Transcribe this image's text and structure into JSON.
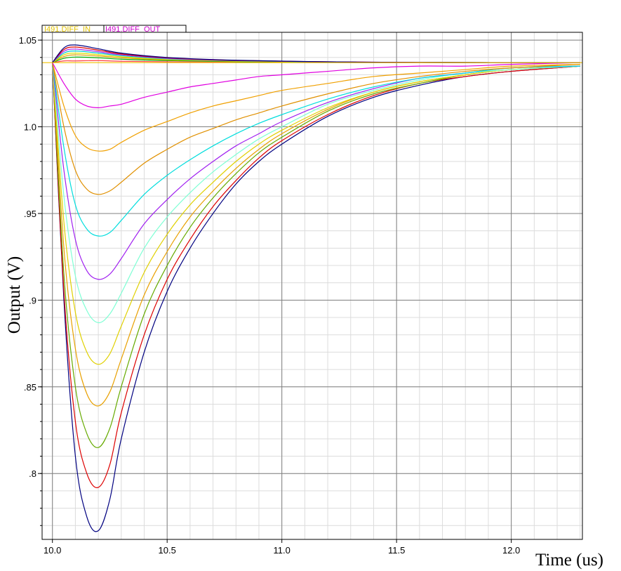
{
  "legend": [
    {
      "label": "I491.DIFF_IN",
      "color": "#e0c000"
    },
    {
      "label": "I491.DIFF_OUT",
      "color": "#cc00cc"
    }
  ],
  "chart_data": {
    "type": "line",
    "title": "",
    "xlabel": "Time (us)",
    "ylabel": "Output (V)",
    "xlim": [
      9.955,
      12.31
    ],
    "ylim": [
      0.762,
      1.0545
    ],
    "x_ticks": [
      10.0,
      10.5,
      11.0,
      11.5,
      12.0
    ],
    "x_tick_labels": [
      "10.0",
      "10.5",
      "11.0",
      "11.5",
      "12.0"
    ],
    "y_ticks": [
      1.05,
      1.0,
      0.95,
      0.9,
      0.85,
      0.8
    ],
    "y_tick_labels": [
      "1.05",
      "1.0",
      ".95",
      ".9",
      ".85",
      ".8"
    ],
    "grid": true,
    "baseline": 1.037,
    "series": [
      {
        "color": "#000080",
        "x": [
          10.0,
          10.05,
          10.1,
          10.15,
          10.2,
          10.25,
          10.3,
          10.4,
          10.5,
          10.6,
          10.7,
          10.8,
          10.9,
          11.0,
          11.2,
          11.4,
          11.6,
          11.8,
          12.0,
          12.3
        ],
        "values": [
          1.037,
          0.9,
          0.81,
          0.775,
          0.767,
          0.785,
          0.82,
          0.87,
          0.905,
          0.93,
          0.95,
          0.967,
          0.98,
          0.99,
          1.006,
          1.017,
          1.024,
          1.029,
          1.032,
          1.035
        ]
      },
      {
        "color": "#dd0000",
        "x": [
          10.0,
          10.05,
          10.1,
          10.15,
          10.2,
          10.25,
          10.3,
          10.4,
          10.5,
          10.6,
          10.7,
          10.8,
          10.9,
          11.0,
          11.2,
          11.4,
          11.6,
          11.8,
          12.0,
          12.3
        ],
        "values": [
          1.037,
          0.905,
          0.83,
          0.8,
          0.792,
          0.805,
          0.835,
          0.88,
          0.912,
          0.935,
          0.954,
          0.969,
          0.982,
          0.992,
          1.007,
          1.018,
          1.025,
          1.029,
          1.032,
          1.035
        ]
      },
      {
        "color": "#66aa00",
        "x": [
          10.0,
          10.05,
          10.1,
          10.15,
          10.2,
          10.25,
          10.3,
          10.4,
          10.5,
          10.6,
          10.7,
          10.8,
          10.9,
          11.0,
          11.2,
          11.4,
          11.6,
          11.8,
          12.0,
          12.3
        ],
        "values": [
          1.037,
          0.915,
          0.85,
          0.823,
          0.815,
          0.826,
          0.85,
          0.892,
          0.92,
          0.942,
          0.959,
          0.973,
          0.985,
          0.994,
          1.009,
          1.019,
          1.025,
          1.03,
          1.033,
          1.035
        ]
      },
      {
        "color": "#e8a000",
        "x": [
          10.0,
          10.05,
          10.1,
          10.15,
          10.2,
          10.25,
          10.3,
          10.4,
          10.5,
          10.6,
          10.7,
          10.8,
          10.9,
          11.0,
          11.2,
          11.4,
          11.6,
          11.8,
          12.0,
          12.3
        ],
        "values": [
          1.037,
          0.93,
          0.872,
          0.846,
          0.839,
          0.847,
          0.866,
          0.903,
          0.928,
          0.948,
          0.963,
          0.976,
          0.987,
          0.996,
          1.01,
          1.02,
          1.026,
          1.03,
          1.033,
          1.035
        ]
      },
      {
        "color": "#e0d000",
        "x": [
          10.0,
          10.05,
          10.1,
          10.15,
          10.2,
          10.25,
          10.3,
          10.4,
          10.5,
          10.6,
          10.7,
          10.8,
          10.9,
          11.0,
          11.2,
          11.4,
          11.6,
          11.8,
          12.0,
          12.3
        ],
        "values": [
          1.037,
          0.945,
          0.893,
          0.87,
          0.863,
          0.869,
          0.885,
          0.916,
          0.938,
          0.955,
          0.968,
          0.98,
          0.99,
          0.998,
          1.011,
          1.02,
          1.026,
          1.03,
          1.033,
          1.035
        ]
      },
      {
        "color": "#7fffd4",
        "x": [
          10.0,
          10.05,
          10.1,
          10.15,
          10.2,
          10.25,
          10.3,
          10.4,
          10.5,
          10.6,
          10.7,
          10.8,
          10.9,
          11.0,
          11.2,
          11.4,
          11.6,
          11.8,
          12.0,
          12.3
        ],
        "values": [
          1.037,
          0.96,
          0.914,
          0.894,
          0.887,
          0.892,
          0.904,
          0.93,
          0.948,
          0.962,
          0.974,
          0.984,
          0.993,
          1.0,
          1.013,
          1.021,
          1.027,
          1.031,
          1.033,
          1.035
        ]
      },
      {
        "color": "#a020f0",
        "x": [
          10.0,
          10.05,
          10.1,
          10.15,
          10.2,
          10.25,
          10.3,
          10.4,
          10.5,
          10.6,
          10.7,
          10.8,
          10.9,
          11.0,
          11.2,
          11.4,
          11.6,
          11.8,
          12.0,
          12.3
        ],
        "values": [
          1.037,
          0.975,
          0.935,
          0.917,
          0.912,
          0.915,
          0.924,
          0.944,
          0.958,
          0.97,
          0.98,
          0.989,
          0.996,
          1.003,
          1.014,
          1.022,
          1.028,
          1.031,
          1.034,
          1.035
        ]
      },
      {
        "color": "#00dddd",
        "x": [
          10.0,
          10.05,
          10.1,
          10.15,
          10.2,
          10.25,
          10.3,
          10.4,
          10.5,
          10.6,
          10.7,
          10.8,
          10.9,
          11.0,
          11.2,
          11.4,
          11.6,
          11.8,
          12.0,
          12.3
        ],
        "values": [
          1.037,
          0.988,
          0.955,
          0.941,
          0.937,
          0.939,
          0.946,
          0.961,
          0.972,
          0.981,
          0.989,
          0.996,
          1.002,
          1.007,
          1.016,
          1.023,
          1.028,
          1.031,
          1.034,
          1.035
        ]
      },
      {
        "color": "#e09000",
        "x": [
          10.0,
          10.05,
          10.1,
          10.15,
          10.2,
          10.25,
          10.3,
          10.4,
          10.5,
          10.6,
          10.7,
          10.8,
          10.9,
          11.0,
          11.2,
          11.4,
          11.6,
          11.8,
          12.0,
          12.3
        ],
        "values": [
          1.037,
          1.0,
          0.975,
          0.964,
          0.961,
          0.963,
          0.968,
          0.979,
          0.987,
          0.994,
          0.999,
          1.004,
          1.008,
          1.012,
          1.019,
          1.025,
          1.029,
          1.032,
          1.034,
          1.036
        ]
      },
      {
        "color": "#f0a000",
        "x": [
          10.0,
          10.05,
          10.1,
          10.15,
          10.2,
          10.25,
          10.3,
          10.4,
          10.5,
          10.6,
          10.7,
          10.8,
          10.9,
          11.0,
          11.2,
          11.4,
          11.6,
          11.8,
          12.0,
          12.3
        ],
        "values": [
          1.037,
          1.012,
          0.995,
          0.988,
          0.986,
          0.987,
          0.991,
          0.998,
          1.003,
          1.008,
          1.012,
          1.015,
          1.018,
          1.021,
          1.025,
          1.029,
          1.031,
          1.033,
          1.035,
          1.036
        ]
      },
      {
        "color": "#e000e0",
        "x": [
          10.0,
          10.05,
          10.1,
          10.15,
          10.2,
          10.25,
          10.3,
          10.4,
          10.5,
          10.6,
          10.7,
          10.8,
          10.9,
          11.0,
          11.2,
          11.4,
          11.6,
          11.8,
          12.0,
          12.3
        ],
        "values": [
          1.037,
          1.025,
          1.016,
          1.012,
          1.011,
          1.012,
          1.013,
          1.017,
          1.02,
          1.023,
          1.025,
          1.027,
          1.029,
          1.03,
          1.032,
          1.034,
          1.035,
          1.035,
          1.036,
          1.037
        ]
      },
      {
        "color": "#ff4040",
        "x": [
          10.0,
          10.05,
          10.1,
          10.2,
          10.3,
          10.5,
          10.8,
          11.2,
          11.6,
          12.3
        ],
        "values": [
          1.037,
          1.038,
          1.038,
          1.0382,
          1.0378,
          1.0375,
          1.0372,
          1.0371,
          1.037,
          1.037
        ]
      },
      {
        "color": "#00aa00",
        "x": [
          10.0,
          10.05,
          10.1,
          10.2,
          10.3,
          10.5,
          10.8,
          11.2,
          11.6,
          12.3
        ],
        "values": [
          1.037,
          1.0395,
          1.0402,
          1.0398,
          1.039,
          1.0382,
          1.0376,
          1.0373,
          1.0371,
          1.037
        ]
      },
      {
        "color": "#e0a000",
        "x": [
          10.0,
          10.05,
          10.1,
          10.2,
          10.3,
          10.5,
          10.8,
          11.2,
          11.6,
          12.3
        ],
        "values": [
          1.037,
          1.0405,
          1.0415,
          1.0408,
          1.0398,
          1.0386,
          1.0378,
          1.0373,
          1.0371,
          1.037
        ]
      },
      {
        "color": "#e0e000",
        "x": [
          10.0,
          10.05,
          10.1,
          10.2,
          10.3,
          10.5,
          10.8,
          11.2,
          11.6,
          12.3
        ],
        "values": [
          1.037,
          1.0415,
          1.0425,
          1.0416,
          1.0404,
          1.0389,
          1.0379,
          1.0374,
          1.0371,
          1.037
        ]
      },
      {
        "color": "#00cccc",
        "x": [
          10.0,
          10.05,
          10.1,
          10.2,
          10.3,
          10.5,
          10.8,
          11.2,
          11.6,
          12.3
        ],
        "values": [
          1.037,
          1.0425,
          1.0437,
          1.0425,
          1.041,
          1.0392,
          1.0381,
          1.0374,
          1.0371,
          1.037
        ]
      },
      {
        "color": "#a020f0",
        "x": [
          10.0,
          10.05,
          10.1,
          10.2,
          10.3,
          10.5,
          10.8,
          11.2,
          11.6,
          12.3
        ],
        "values": [
          1.037,
          1.0435,
          1.0448,
          1.0433,
          1.0415,
          1.0395,
          1.0382,
          1.0375,
          1.0371,
          1.037
        ]
      },
      {
        "color": "#dd0000",
        "x": [
          10.0,
          10.05,
          10.1,
          10.2,
          10.3,
          10.5,
          10.8,
          11.2,
          11.6,
          12.3
        ],
        "values": [
          1.037,
          1.0445,
          1.046,
          1.0442,
          1.042,
          1.0398,
          1.0383,
          1.0375,
          1.0371,
          1.037
        ]
      },
      {
        "color": "#000080",
        "x": [
          10.0,
          10.05,
          10.1,
          10.2,
          10.3,
          10.5,
          10.8,
          11.2,
          11.6,
          12.3
        ],
        "values": [
          1.037,
          1.0455,
          1.0472,
          1.045,
          1.0425,
          1.04,
          1.0384,
          1.0375,
          1.0371,
          1.037
        ]
      }
    ]
  }
}
